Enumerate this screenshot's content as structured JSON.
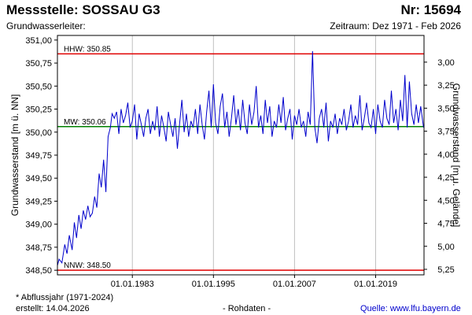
{
  "header": {
    "title": "Messstelle: SOSSAU G3",
    "number": "Nr: 15694",
    "aquifer": "Grundwasserleiter:",
    "period": "Zeitraum: Dez 1971 - Feb 2026"
  },
  "footer": {
    "note": "* Abflussjahr (1971-2024)",
    "created": "erstellt:  14.04.2026",
    "raw": "- Rohdaten -",
    "source_prefix": "Quelle:",
    "source_link": "www.lfu.bayern.de"
  },
  "colors": {
    "series": "#0000cc",
    "extreme_lines": "#e00000",
    "mean_line": "#008000",
    "grid": "#c0c0c0",
    "frame": "#000000"
  },
  "chart_data": {
    "type": "line",
    "title": "",
    "ylabel": "Grundwasserstand [m ü. NN]",
    "y2label": "Grundwasserstand [m u. Gelände]",
    "xlim": [
      "1971-12-01",
      "2026-02-28"
    ],
    "ylim": [
      348.45,
      351.05
    ],
    "y2lim": [
      5.31,
      2.71
    ],
    "xticks": [
      "01.01.1983",
      "01.01.1995",
      "01.01.2007",
      "01.01.2019"
    ],
    "xtick_dates": [
      "1983-01-01",
      "1995-01-01",
      "2007-01-01",
      "2019-01-01"
    ],
    "yticks": [
      351.0,
      350.75,
      350.5,
      350.25,
      350.0,
      349.75,
      349.5,
      349.25,
      349.0,
      348.75,
      348.5
    ],
    "ytick_labels": [
      "351,00",
      "350,75",
      "350,50",
      "350,25",
      "350,00",
      "349,75",
      "349,50",
      "349,25",
      "349,00",
      "348,75",
      "348,50"
    ],
    "y2ticks": [
      3.0,
      3.25,
      3.5,
      3.75,
      4.0,
      4.25,
      4.5,
      4.75,
      5.0,
      5.25
    ],
    "y2tick_labels": [
      "3,00",
      "3,25",
      "3,50",
      "3,75",
      "4,00",
      "4,25",
      "4,50",
      "4,75",
      "5,00",
      "5,25"
    ],
    "grid": "vertical",
    "reference_lines": [
      {
        "label": "HHW: 350.85",
        "value": 350.85
      },
      {
        "label": "MW: 350.06",
        "value": 350.06
      },
      {
        "label": "NNW: 348.50",
        "value": 348.5
      }
    ],
    "series": [
      {
        "x": [
          "1971-12-01",
          "1972-03-01",
          "1972-08-01",
          "1973-01-01",
          "1973-05-01",
          "1973-09-01",
          "1974-02-01",
          "1974-06-01",
          "1974-10-01",
          "1975-02-01",
          "1975-06-01",
          "1975-10-01",
          "1976-02-01",
          "1976-06-01",
          "1976-10-01",
          "1977-02-01",
          "1977-06-01",
          "1977-10-01",
          "1978-02-01",
          "1978-06-01",
          "1978-10-01",
          "1979-02-01",
          "1979-06-01",
          "1979-10-01",
          "1980-01-01",
          "1980-05-01",
          "1980-09-01",
          "1981-01-01",
          "1981-05-01",
          "1981-09-01",
          "1982-01-01",
          "1982-05-01",
          "1982-09-01",
          "1983-01-01",
          "1983-05-01",
          "1983-09-01",
          "1984-01-01",
          "1984-05-01",
          "1984-09-01",
          "1985-01-01",
          "1985-05-01",
          "1985-09-01",
          "1986-01-01",
          "1986-05-01",
          "1986-09-01",
          "1987-01-01",
          "1987-05-01",
          "1987-09-01",
          "1988-01-01",
          "1988-05-01",
          "1988-09-01",
          "1989-01-01",
          "1989-05-01",
          "1989-09-01",
          "1990-01-01",
          "1990-05-01",
          "1990-09-01",
          "1991-01-01",
          "1991-05-01",
          "1991-09-01",
          "1992-01-01",
          "1992-05-01",
          "1992-09-01",
          "1993-01-01",
          "1993-05-01",
          "1993-09-01",
          "1994-01-01",
          "1994-05-01",
          "1994-09-01",
          "1995-01-01",
          "1995-05-01",
          "1995-09-01",
          "1996-01-01",
          "1996-05-01",
          "1996-09-01",
          "1997-01-01",
          "1997-05-01",
          "1997-09-01",
          "1998-01-01",
          "1998-05-01",
          "1998-09-01",
          "1999-01-01",
          "1999-05-01",
          "1999-09-01",
          "2000-01-01",
          "2000-05-01",
          "2000-09-01",
          "2001-01-01",
          "2001-05-01",
          "2001-09-01",
          "2002-01-01",
          "2002-05-01",
          "2002-09-01",
          "2003-01-01",
          "2003-05-01",
          "2003-09-01",
          "2004-01-01",
          "2004-05-01",
          "2004-09-01",
          "2005-01-01",
          "2005-05-01",
          "2005-09-01",
          "2006-01-01",
          "2006-05-01",
          "2006-09-01",
          "2007-01-01",
          "2007-05-01",
          "2007-09-01",
          "2008-01-01",
          "2008-05-01",
          "2008-09-01",
          "2009-01-01",
          "2009-05-01",
          "2009-09-01",
          "2010-01-01",
          "2010-05-01",
          "2010-09-01",
          "2011-01-01",
          "2011-05-01",
          "2011-09-01",
          "2012-01-01",
          "2012-05-01",
          "2012-09-01",
          "2013-01-01",
          "2013-05-01",
          "2013-09-01",
          "2014-01-01",
          "2014-05-01",
          "2014-09-01",
          "2015-01-01",
          "2015-05-01",
          "2015-09-01",
          "2016-01-01",
          "2016-05-01",
          "2016-09-01",
          "2017-01-01",
          "2017-05-01",
          "2017-09-01",
          "2018-01-01",
          "2018-05-01",
          "2018-09-01",
          "2019-01-01",
          "2019-05-01",
          "2019-09-01",
          "2020-01-01",
          "2020-05-01",
          "2020-09-01",
          "2021-01-01",
          "2021-05-01",
          "2021-09-01",
          "2022-01-01",
          "2022-05-01",
          "2022-09-01",
          "2023-01-01",
          "2023-05-01",
          "2023-09-01",
          "2024-01-01",
          "2024-05-01",
          "2024-09-01",
          "2025-01-01",
          "2025-05-01",
          "2025-09-01",
          "2026-02-01"
        ],
        "values": [
          348.55,
          348.62,
          348.58,
          348.78,
          348.68,
          348.88,
          348.72,
          349.02,
          348.85,
          349.1,
          348.95,
          349.15,
          349.05,
          349.2,
          349.08,
          349.12,
          349.3,
          349.18,
          349.55,
          349.4,
          349.7,
          349.35,
          349.95,
          350.05,
          350.2,
          350.15,
          350.22,
          349.98,
          350.25,
          350.1,
          350.18,
          350.32,
          350.05,
          350.12,
          350.3,
          349.92,
          350.2,
          350.08,
          349.95,
          350.15,
          350.25,
          349.98,
          350.12,
          350.02,
          350.28,
          349.95,
          350.18,
          350.05,
          349.9,
          350.22,
          350.08,
          349.95,
          350.15,
          349.82,
          350.1,
          350.35,
          350.0,
          350.2,
          349.95,
          350.12,
          350.05,
          350.25,
          349.98,
          350.3,
          350.08,
          349.92,
          350.22,
          350.45,
          350.05,
          350.52,
          350.1,
          349.98,
          350.28,
          350.42,
          350.05,
          350.22,
          349.95,
          350.15,
          350.4,
          350.08,
          350.25,
          350.02,
          350.35,
          350.1,
          349.98,
          350.3,
          350.08,
          350.22,
          350.5,
          350.05,
          350.18,
          349.98,
          350.35,
          350.1,
          350.28,
          349.95,
          350.12,
          350.05,
          350.3,
          350.1,
          350.38,
          350.02,
          350.15,
          350.25,
          349.92,
          350.18,
          350.08,
          350.25,
          350.05,
          350.12,
          349.95,
          350.22,
          350.08,
          350.88,
          350.05,
          349.88,
          350.15,
          350.25,
          350.05,
          350.32,
          349.9,
          350.12,
          350.05,
          350.2,
          349.98,
          350.15,
          350.08,
          350.25,
          350.02,
          350.12,
          350.3,
          350.05,
          350.18,
          350.08,
          350.4,
          350.02,
          350.15,
          350.32,
          350.1,
          350.05,
          350.25,
          349.98,
          350.3,
          350.12,
          350.05,
          350.35,
          350.15,
          350.08,
          350.45,
          350.1,
          350.25,
          350.02,
          350.35,
          350.12,
          350.62,
          350.05,
          350.55,
          350.2,
          350.08,
          350.3,
          350.1,
          350.28,
          350.05
        ]
      }
    ]
  }
}
